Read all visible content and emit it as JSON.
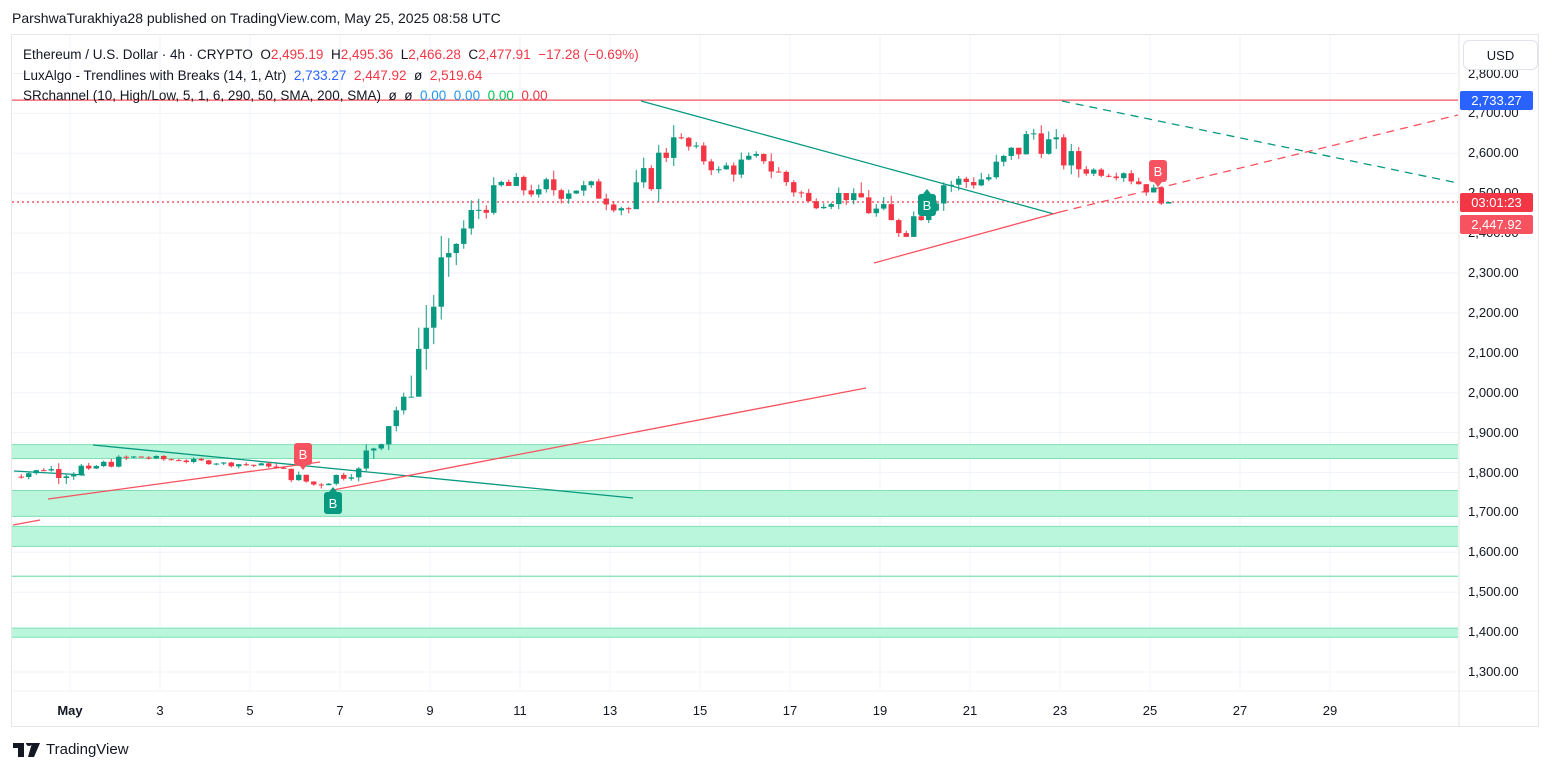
{
  "header": {
    "publish_line": "ParshwaTurakhiya28 published on TradingView.com, May 25, 2025 08:58 UTC"
  },
  "legend": {
    "symbol": "Ethereum / U.S. Dollar · 4h · CRYPTO",
    "o_label": "O",
    "o_value": "2,495.19",
    "h_label": "H",
    "h_value": "2,495.36",
    "l_label": "L",
    "l_value": "2,466.28",
    "c_label": "C",
    "c_value": "2,477.91",
    "change": "−17.28 (−0.69%)",
    "indicator1_name": "LuxAlgo - Trendlines with Breaks (14, 1, Atr)",
    "indicator1_v1": "2,733.27",
    "indicator1_v2": "2,447.92",
    "indicator1_v3": "ø",
    "indicator1_v4": "2,519.64",
    "indicator2_name": "SRchannel (10, High/Low, 5, 1, 6, 290, 50, SMA, 200, SMA)",
    "indicator2_v1": "ø",
    "indicator2_v2": "ø",
    "indicator2_v3": "0.00",
    "indicator2_v4": "0.00",
    "indicator2_v5": "0.00",
    "indicator2_v6": "0.00"
  },
  "price_axis": {
    "currency_button": "USD",
    "tag_upper": "2,733.27",
    "tag_countdown": "03:01:23",
    "tag_lower": "2,447.92",
    "colors": {
      "upper": "#2962ff",
      "countdown": "#f23645",
      "lower": "#f7525f"
    }
  },
  "footer": {
    "brand": "TradingView"
  },
  "colors": {
    "up": "#089981",
    "down": "#f23645",
    "zone": "#b9f6dc",
    "zone_line": "#7fe0b4",
    "trend_down": "#089981",
    "trend_up": "#f7525f"
  },
  "chart_data": {
    "type": "candlestick",
    "title": "Ethereum / U.S. Dollar · 4h · CRYPTO",
    "xlabel": "",
    "ylabel": "USD",
    "x_ticks": [
      "May",
      "3",
      "5",
      "7",
      "9",
      "11",
      "13",
      "15",
      "17",
      "19",
      "21",
      "23",
      "25",
      "27",
      "29"
    ],
    "y_ticks": [
      "2,800.00",
      "2,700.00",
      "2,600.00",
      "2,500.00",
      "2,400.00",
      "2,300.00",
      "2,200.00",
      "2,100.00",
      "2,000.00",
      "1,900.00",
      "1,800.00",
      "1,700.00",
      "1,600.00",
      "1,500.00",
      "1,400.00",
      "1,300.00"
    ],
    "ylim": [
      1250,
      2850
    ],
    "last_ohlc": {
      "open": 2495.19,
      "high": 2495.36,
      "low": 2466.28,
      "close": 2477.91,
      "change": -17.28,
      "change_pct": -0.69
    },
    "daily_approx": [
      {
        "day": "Apr 30",
        "open": 1790,
        "high": 1820,
        "low": 1760,
        "close": 1805
      },
      {
        "day": "May 1",
        "open": 1805,
        "high": 1860,
        "low": 1730,
        "close": 1810
      },
      {
        "day": "May 2",
        "open": 1810,
        "high": 1870,
        "low": 1800,
        "close": 1840
      },
      {
        "day": "May 3",
        "open": 1840,
        "high": 1860,
        "low": 1820,
        "close": 1830
      },
      {
        "day": "May 4",
        "open": 1830,
        "high": 1845,
        "low": 1810,
        "close": 1825
      },
      {
        "day": "May 5",
        "open": 1825,
        "high": 1840,
        "low": 1795,
        "close": 1815
      },
      {
        "day": "May 6",
        "open": 1815,
        "high": 1830,
        "low": 1750,
        "close": 1770
      },
      {
        "day": "May 7",
        "open": 1770,
        "high": 1850,
        "low": 1760,
        "close": 1810
      },
      {
        "day": "May 8",
        "open": 1810,
        "high": 2000,
        "low": 1800,
        "close": 1990
      },
      {
        "day": "May 9",
        "open": 1990,
        "high": 2480,
        "low": 1990,
        "close": 2350
      },
      {
        "day": "May 10",
        "open": 2350,
        "high": 2540,
        "low": 2280,
        "close": 2520
      },
      {
        "day": "May 11",
        "open": 2520,
        "high": 2600,
        "low": 2440,
        "close": 2510
      },
      {
        "day": "May 12",
        "open": 2510,
        "high": 2620,
        "low": 2420,
        "close": 2520
      },
      {
        "day": "May 13",
        "open": 2520,
        "high": 2550,
        "low": 2410,
        "close": 2460
      },
      {
        "day": "May 14",
        "open": 2460,
        "high": 2735,
        "low": 2460,
        "close": 2640
      },
      {
        "day": "May 15",
        "open": 2640,
        "high": 2660,
        "low": 2540,
        "close": 2560
      },
      {
        "day": "May 16",
        "open": 2560,
        "high": 2640,
        "low": 2480,
        "close": 2580
      },
      {
        "day": "May 17",
        "open": 2580,
        "high": 2620,
        "low": 2450,
        "close": 2480
      },
      {
        "day": "May 18",
        "open": 2480,
        "high": 2580,
        "low": 2460,
        "close": 2500
      },
      {
        "day": "May 19",
        "open": 2500,
        "high": 2580,
        "low": 2330,
        "close": 2400
      },
      {
        "day": "May 20",
        "open": 2400,
        "high": 2580,
        "low": 2390,
        "close": 2520
      },
      {
        "day": "May 21",
        "open": 2520,
        "high": 2620,
        "low": 2460,
        "close": 2540
      },
      {
        "day": "May 22",
        "open": 2540,
        "high": 2700,
        "low": 2490,
        "close": 2650
      },
      {
        "day": "May 23",
        "open": 2650,
        "high": 2735,
        "low": 2520,
        "close": 2560
      },
      {
        "day": "May 24",
        "open": 2560,
        "high": 2580,
        "low": 2500,
        "close": 2550
      },
      {
        "day": "May 25",
        "open": 2550,
        "high": 2560,
        "low": 2466,
        "close": 2478
      }
    ],
    "support_resistance_zones": [
      {
        "low": 1835,
        "high": 1870
      },
      {
        "low": 1690,
        "high": 1755
      },
      {
        "low": 1615,
        "high": 1665
      },
      {
        "low": 1540,
        "high": 1540
      },
      {
        "low": 1387,
        "high": 1410
      }
    ],
    "annotations": [
      {
        "type": "horizontal",
        "price": 2733.27,
        "color": "#f7525f"
      },
      {
        "type": "horizontal_dotted",
        "price": 2477.91,
        "color": "#f23645"
      },
      {
        "type": "label",
        "text": "B",
        "position": "May 6",
        "color": "#f7525f"
      },
      {
        "type": "label",
        "text": "B",
        "position": "May 7",
        "color": "#089981"
      },
      {
        "type": "label",
        "text": "B",
        "position": "May 20",
        "color": "#089981"
      },
      {
        "type": "label",
        "text": "B",
        "position": "May 25",
        "color": "#f7525f"
      }
    ],
    "grid": true,
    "legend_position": "top-left"
  }
}
